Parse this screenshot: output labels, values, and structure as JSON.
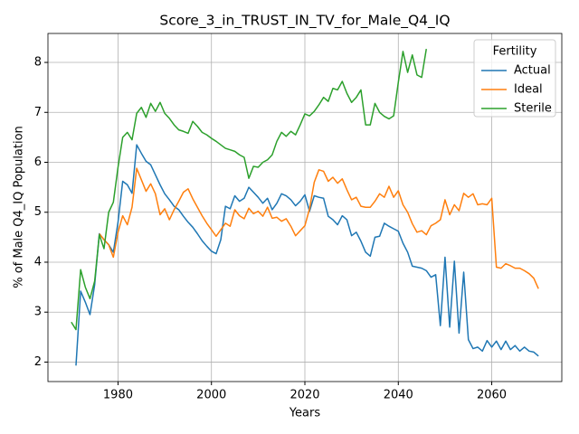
{
  "chart_data": {
    "type": "line",
    "title": "Score_3_in_TRUST_IN_TV_for_Male_Q4_IQ",
    "x_label": "Years",
    "y_label": "% of Male Q4_IQ Population",
    "legend_title": "Fertility",
    "legend": "upper right",
    "grid": true,
    "x": [
      1970,
      1971,
      1972,
      1973,
      1974,
      1975,
      1976,
      1977,
      1978,
      1979,
      1980,
      1981,
      1982,
      1983,
      1984,
      1985,
      1986,
      1987,
      1988,
      1989,
      1990,
      1991,
      1992,
      1993,
      1994,
      1995,
      1996,
      1997,
      1998,
      1999,
      2000,
      2001,
      2002,
      2003,
      2004,
      2005,
      2006,
      2007,
      2008,
      2009,
      2010,
      2011,
      2012,
      2013,
      2014,
      2015,
      2016,
      2017,
      2018,
      2019,
      2020,
      2021,
      2022,
      2023,
      2024,
      2025,
      2026,
      2027,
      2028,
      2029,
      2030,
      2031,
      2032,
      2033,
      2034,
      2035,
      2036,
      2037,
      2038,
      2039,
      2040,
      2041,
      2042,
      2043,
      2044,
      2045,
      2046,
      2047,
      2048,
      2049,
      2050,
      2051,
      2052,
      2053,
      2054,
      2055,
      2056,
      2057,
      2058,
      2059,
      2060,
      2061,
      2062,
      2063,
      2064,
      2065,
      2066,
      2067,
      2068,
      2069,
      2070
    ],
    "series": [
      {
        "name": "Actual",
        "color": "#1f77b4",
        "values": [
          null,
          1.93,
          3.42,
          3.2,
          2.95,
          3.55,
          4.57,
          4.45,
          4.35,
          4.2,
          4.8,
          5.62,
          5.55,
          5.38,
          6.35,
          6.18,
          6.02,
          5.95,
          5.75,
          5.55,
          5.37,
          5.25,
          5.12,
          5.05,
          4.92,
          4.8,
          4.7,
          4.57,
          4.43,
          4.32,
          4.22,
          4.17,
          4.45,
          5.12,
          5.07,
          5.33,
          5.22,
          5.28,
          5.5,
          5.4,
          5.3,
          5.18,
          5.28,
          5.05,
          5.18,
          5.37,
          5.33,
          5.25,
          5.13,
          5.22,
          5.35,
          5.02,
          5.33,
          5.3,
          5.28,
          4.92,
          4.85,
          4.75,
          4.93,
          4.85,
          4.53,
          4.6,
          4.42,
          4.2,
          4.12,
          4.5,
          4.52,
          4.78,
          4.72,
          4.67,
          4.62,
          4.38,
          4.2,
          3.92,
          3.9,
          3.88,
          3.83,
          3.7,
          3.75,
          2.73,
          4.1,
          2.7,
          4.02,
          2.58,
          3.8,
          2.45,
          2.27,
          2.3,
          2.22,
          2.43,
          2.3,
          2.42,
          2.25,
          2.42,
          2.25,
          2.33,
          2.22,
          2.3,
          2.22,
          2.2,
          2.12
        ]
      },
      {
        "name": "Ideal",
        "color": "#ff7f0e",
        "values": [
          null,
          null,
          null,
          null,
          null,
          null,
          4.57,
          4.45,
          4.35,
          4.1,
          4.6,
          4.93,
          4.75,
          5.1,
          5.88,
          5.65,
          5.42,
          5.57,
          5.37,
          4.95,
          5.07,
          4.85,
          5.05,
          5.22,
          5.4,
          5.47,
          5.27,
          5.1,
          4.93,
          4.78,
          4.65,
          4.52,
          4.65,
          4.78,
          4.72,
          5.05,
          4.93,
          4.87,
          5.08,
          4.97,
          5.02,
          4.92,
          5.1,
          4.88,
          4.9,
          4.82,
          4.87,
          4.72,
          4.53,
          4.63,
          4.73,
          5.07,
          5.6,
          5.85,
          5.82,
          5.62,
          5.7,
          5.58,
          5.67,
          5.45,
          5.25,
          5.3,
          5.12,
          5.1,
          5.1,
          5.22,
          5.37,
          5.3,
          5.52,
          5.3,
          5.43,
          5.15,
          5.0,
          4.77,
          4.6,
          4.63,
          4.55,
          4.73,
          4.78,
          4.85,
          5.25,
          4.95,
          5.15,
          5.03,
          5.38,
          5.3,
          5.37,
          5.15,
          5.17,
          5.15,
          5.28,
          3.9,
          3.88,
          3.97,
          3.93,
          3.88,
          3.88,
          3.83,
          3.77,
          3.68,
          3.47
        ]
      },
      {
        "name": "Sterile",
        "color": "#2ca02c",
        "values": [
          2.8,
          2.65,
          3.85,
          3.5,
          3.27,
          3.62,
          4.55,
          4.27,
          5.0,
          5.2,
          5.9,
          6.5,
          6.6,
          6.45,
          6.98,
          7.1,
          6.9,
          7.18,
          7.02,
          7.2,
          6.98,
          6.88,
          6.75,
          6.65,
          6.62,
          6.58,
          6.82,
          6.72,
          6.6,
          6.55,
          6.48,
          6.42,
          6.35,
          6.28,
          6.25,
          6.22,
          6.15,
          6.1,
          5.68,
          5.92,
          5.9,
          6.0,
          6.05,
          6.15,
          6.42,
          6.6,
          6.52,
          6.62,
          6.55,
          6.75,
          6.97,
          6.93,
          7.02,
          7.15,
          7.3,
          7.22,
          7.48,
          7.45,
          7.62,
          7.38,
          7.2,
          7.3,
          7.45,
          6.75,
          6.75,
          7.18,
          7.0,
          6.92,
          6.87,
          6.93,
          7.6,
          8.22,
          7.8,
          8.15,
          7.75,
          7.7,
          8.27,
          null,
          null,
          null,
          null,
          null,
          null,
          null,
          null,
          null,
          null,
          null,
          null,
          null,
          null,
          null,
          null,
          null,
          null,
          null,
          null,
          null,
          null,
          null,
          null
        ]
      }
    ],
    "xlim": [
      1965,
      2075
    ],
    "xticks": [
      1980,
      2000,
      2020,
      2040,
      2060
    ],
    "ylim": [
      1.61,
      8.58
    ],
    "yticks": [
      2,
      3,
      4,
      5,
      6,
      7,
      8
    ]
  }
}
